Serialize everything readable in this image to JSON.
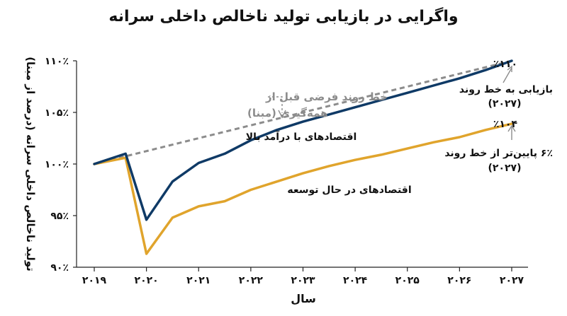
{
  "chart_data": {
    "type": "line",
    "title": "واگرایی در بازیابی تولید ناخالص داخلی سرانه",
    "xlabel": "سال",
    "ylabel": "تولید ناخالص داخلی سرانه (درصد از مبنا)",
    "x_ticks": [
      2019,
      2020,
      2021,
      2022,
      2023,
      2024,
      2025,
      2026,
      2027
    ],
    "x_tick_labels": [
      "۲۰۱۹",
      "۲۰۲۰",
      "۲۰۲۱",
      "۲۰۲۲",
      "۲۰۲۳",
      "۲۰۲۴",
      "۲۰۲۵",
      "۲۰۲۶",
      "۲۰۲۷"
    ],
    "xlim": [
      2019,
      2027
    ],
    "y_ticks": [
      90,
      95,
      100,
      105,
      110
    ],
    "y_tick_labels": [
      "۹۰٪",
      "۹۵٪",
      "۱۰۰٪",
      "۱۰۵٪",
      "۱۱۰٪"
    ],
    "ylim": [
      90,
      110
    ],
    "grid": false,
    "series": [
      {
        "name": "اقتصادهای با درآمد بالا",
        "color": "#0f3a66",
        "x": [
          2019,
          2019.6,
          2020,
          2020.5,
          2021,
          2021.5,
          2022,
          2022.5,
          2023,
          2023.5,
          2024,
          2024.5,
          2025,
          2025.5,
          2026,
          2026.5,
          2027
        ],
        "y": [
          100,
          101,
          94.6,
          98.3,
          100.1,
          101.0,
          102.3,
          103.3,
          104.1,
          104.8,
          105.5,
          106.2,
          106.9,
          107.6,
          108.3,
          109.1,
          110
        ]
      },
      {
        "name": "اقتصادهای در حال توسعه",
        "color": "#e0a42c",
        "x": [
          2019,
          2019.6,
          2020,
          2020.5,
          2021,
          2021.5,
          2022,
          2022.5,
          2023,
          2023.5,
          2024,
          2024.5,
          2025,
          2025.5,
          2026,
          2026.5,
          2027
        ],
        "y": [
          100,
          100.6,
          91.3,
          94.8,
          95.9,
          96.4,
          97.5,
          98.3,
          99.1,
          99.8,
          100.4,
          100.9,
          101.5,
          102.1,
          102.6,
          103.3,
          103.9
        ]
      },
      {
        "name": "خط روند فرضی قبل از همه‌گیری (مبنا)",
        "color": "#8c8c8c",
        "dashed": true,
        "x": [
          2019,
          2027
        ],
        "y": [
          100,
          110
        ]
      }
    ],
    "annotations": {
      "trend_label_line1": "خط روند فرضی قبل از",
      "trend_label_line2": "همه‌گیری (مبنا)",
      "high_income_label": "اقتصادهای با درآمد بالا",
      "developing_label": "اقتصادهای در حال توسعه",
      "end_value_high": "٪۱۱۰",
      "end_value_dev": "٪۱۰۴",
      "high_note_line1": "بازیابی به خط روند",
      "high_note_line2": "(۲۰۲۷)",
      "dev_note_line1": "۶٪ پایین‌تر از خط روند",
      "dev_note_line2": "(۲۰۲۷)"
    }
  }
}
